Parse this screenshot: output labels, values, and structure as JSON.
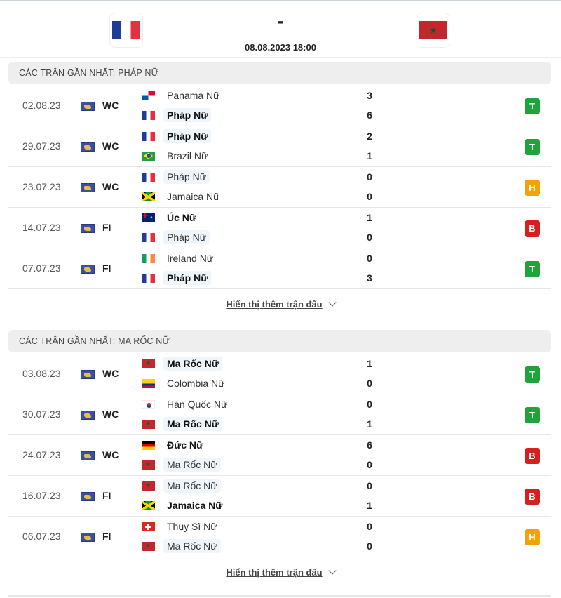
{
  "match": {
    "home_flag": "france",
    "away_flag": "morocco",
    "score": "-",
    "datetime": "08.08.2023 18:00"
  },
  "colors": {
    "win": "#1fa33b",
    "draw": "#f5a10c",
    "loss": "#d81f1f",
    "highlight_bg": "#eef5fb"
  },
  "sections": [
    {
      "title": "CÁC TRẬN GẦN NHẤT: PHÁP NỮ",
      "more_label": "Hiển thị thêm trận đấu",
      "matches": [
        {
          "date": "02.08.23",
          "comp": "WC",
          "home": {
            "name": "Panama Nữ",
            "flag": "panama",
            "goals": "3",
            "highlight": false,
            "bold": false
          },
          "away": {
            "name": "Pháp Nữ",
            "flag": "france",
            "goals": "6",
            "highlight": true,
            "bold": true
          },
          "result": "T"
        },
        {
          "date": "29.07.23",
          "comp": "WC",
          "home": {
            "name": "Pháp Nữ",
            "flag": "france",
            "goals": "2",
            "highlight": true,
            "bold": true
          },
          "away": {
            "name": "Brazil Nữ",
            "flag": "brazil",
            "goals": "1",
            "highlight": false,
            "bold": false
          },
          "result": "T"
        },
        {
          "date": "23.07.23",
          "comp": "WC",
          "home": {
            "name": "Pháp Nữ",
            "flag": "france",
            "goals": "0",
            "highlight": true,
            "bold": false
          },
          "away": {
            "name": "Jamaica Nữ",
            "flag": "jamaica",
            "goals": "0",
            "highlight": false,
            "bold": false
          },
          "result": "H"
        },
        {
          "date": "14.07.23",
          "comp": "FI",
          "home": {
            "name": "Úc Nữ",
            "flag": "australia",
            "goals": "1",
            "highlight": false,
            "bold": true
          },
          "away": {
            "name": "Pháp Nữ",
            "flag": "france",
            "goals": "0",
            "highlight": true,
            "bold": false
          },
          "result": "B"
        },
        {
          "date": "07.07.23",
          "comp": "FI",
          "home": {
            "name": "Ireland Nữ",
            "flag": "ireland",
            "goals": "0",
            "highlight": false,
            "bold": false
          },
          "away": {
            "name": "Pháp Nữ",
            "flag": "france",
            "goals": "3",
            "highlight": true,
            "bold": true
          },
          "result": "T"
        }
      ]
    },
    {
      "title": "CÁC TRẬN GẦN NHẤT: MA RỐC NỮ",
      "more_label": "Hiển thị thêm trận đấu",
      "matches": [
        {
          "date": "03.08.23",
          "comp": "WC",
          "home": {
            "name": "Ma Rốc Nữ",
            "flag": "morocco",
            "goals": "1",
            "highlight": true,
            "bold": true
          },
          "away": {
            "name": "Colombia Nữ",
            "flag": "colombia",
            "goals": "0",
            "highlight": false,
            "bold": false
          },
          "result": "T"
        },
        {
          "date": "30.07.23",
          "comp": "WC",
          "home": {
            "name": "Hàn Quốc Nữ",
            "flag": "korea",
            "goals": "0",
            "highlight": false,
            "bold": false
          },
          "away": {
            "name": "Ma Rốc Nữ",
            "flag": "morocco",
            "goals": "1",
            "highlight": true,
            "bold": true
          },
          "result": "T"
        },
        {
          "date": "24.07.23",
          "comp": "WC",
          "home": {
            "name": "Đức Nữ",
            "flag": "germany",
            "goals": "6",
            "highlight": false,
            "bold": true
          },
          "away": {
            "name": "Ma Rốc Nữ",
            "flag": "morocco",
            "goals": "0",
            "highlight": true,
            "bold": false
          },
          "result": "B"
        },
        {
          "date": "16.07.23",
          "comp": "FI",
          "home": {
            "name": "Ma Rốc Nữ",
            "flag": "morocco",
            "goals": "0",
            "highlight": true,
            "bold": false
          },
          "away": {
            "name": "Jamaica Nữ",
            "flag": "jamaica",
            "goals": "1",
            "highlight": false,
            "bold": true
          },
          "result": "B"
        },
        {
          "date": "06.07.23",
          "comp": "FI",
          "home": {
            "name": "Thụy Sĩ Nữ",
            "flag": "switzerland",
            "goals": "0",
            "highlight": false,
            "bold": false
          },
          "away": {
            "name": "Ma Rốc Nữ",
            "flag": "morocco",
            "goals": "0",
            "highlight": true,
            "bold": false
          },
          "result": "H"
        }
      ]
    }
  ]
}
